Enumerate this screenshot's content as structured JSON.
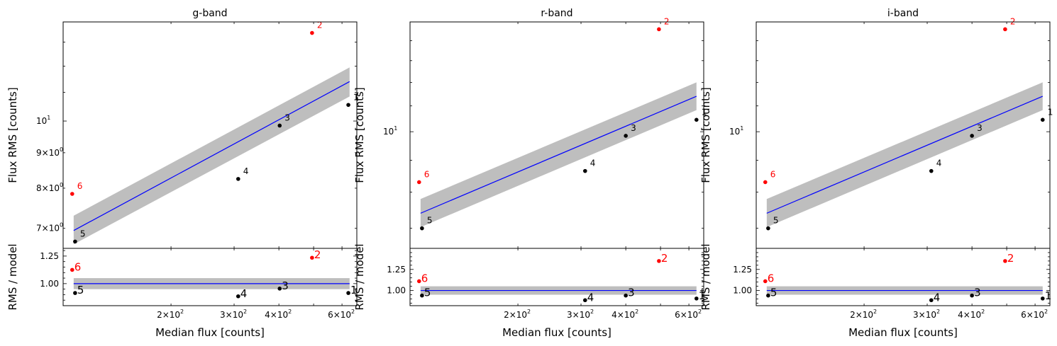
{
  "chart_data": [
    {
      "type": "scatter",
      "title": "g-band",
      "xlabel": "Median flux [counts]",
      "ylabel_top": "Flux RMS [counts]",
      "ylabel_bottom": "RMS / model",
      "x_scale": "log",
      "y_scale_top": "log",
      "xlim": [
        100,
        660
      ],
      "x_tick_labels": [
        {
          "value": 200,
          "label": "2×10",
          "exp": "2"
        },
        {
          "value": 300,
          "label": "3×10",
          "exp": "2"
        },
        {
          "value": 400,
          "label": "4×10",
          "exp": "2"
        },
        {
          "value": 600,
          "label": "6×10",
          "exp": "2"
        }
      ],
      "ylim_top": [
        6.55,
        13.9
      ],
      "y_tick_labels_top": [
        {
          "value": 7,
          "label": "7×10",
          "exp": "0"
        },
        {
          "value": 8,
          "label": "8×10",
          "exp": "0"
        },
        {
          "value": 9,
          "label": "9×10",
          "exp": "0"
        },
        {
          "value": 10,
          "label": "10",
          "exp": "1"
        }
      ],
      "ylim_bottom": [
        0.8,
        1.32
      ],
      "y_ticks_bottom": [
        1.0,
        1.25
      ],
      "y_tick_labels_bottom": [
        "1.00",
        "1.25"
      ],
      "points": [
        {
          "label": "1",
          "x": 625,
          "y": 10.55,
          "ratio": 0.915,
          "outlier": false
        },
        {
          "label": "2",
          "x": 495,
          "y": 13.4,
          "ratio": 1.235,
          "outlier": true
        },
        {
          "label": "3",
          "x": 402,
          "y": 9.85,
          "ratio": 0.955,
          "outlier": false
        },
        {
          "label": "4",
          "x": 308,
          "y": 8.25,
          "ratio": 0.885,
          "outlier": false
        },
        {
          "label": "5",
          "x": 108,
          "y": 6.7,
          "ratio": 0.915,
          "outlier": false
        },
        {
          "label": "6",
          "x": 106,
          "y": 7.85,
          "ratio": 1.125,
          "outlier": true
        }
      ],
      "fit": {
        "x": [
          107,
          630
        ],
        "y": [
          6.95,
          11.4
        ],
        "band_low": [
          6.64,
          10.85
        ],
        "band_high": [
          7.3,
          11.95
        ]
      },
      "ratio_band": [
        0.95,
        1.05
      ]
    },
    {
      "type": "scatter",
      "title": "r-band",
      "xlabel": "Median flux [counts]",
      "ylabel_top": "Flux RMS [counts]",
      "ylabel_bottom": "RMS / model",
      "x_scale": "log",
      "y_scale_top": "log",
      "xlim": [
        100,
        660
      ],
      "x_tick_labels": [
        {
          "value": 200,
          "label": "2×10",
          "exp": "2"
        },
        {
          "value": 300,
          "label": "3×10",
          "exp": "2"
        },
        {
          "value": 400,
          "label": "4×10",
          "exp": "2"
        },
        {
          "value": 600,
          "label": "6×10",
          "exp": "2"
        }
      ],
      "ylim_top": [
        6.5,
        15.0
      ],
      "y_tick_labels_top": [
        {
          "value": 10,
          "label": "10",
          "exp": "1"
        }
      ],
      "ylim_bottom": [
        0.82,
        1.5
      ],
      "y_ticks_bottom": [
        1.0,
        1.25
      ],
      "y_tick_labels_bottom": [
        "1.00",
        "1.25"
      ],
      "points": [
        {
          "label": "1",
          "x": 630,
          "y": 10.45,
          "ratio": 0.905,
          "outlier": false
        },
        {
          "label": "2",
          "x": 495,
          "y": 14.6,
          "ratio": 1.35,
          "outlier": true
        },
        {
          "label": "3",
          "x": 400,
          "y": 9.85,
          "ratio": 0.94,
          "outlier": false
        },
        {
          "label": "4",
          "x": 308,
          "y": 8.65,
          "ratio": 0.885,
          "outlier": false
        },
        {
          "label": "5",
          "x": 108,
          "y": 7.0,
          "ratio": 0.94,
          "outlier": false
        },
        {
          "label": "6",
          "x": 106,
          "y": 8.3,
          "ratio": 1.11,
          "outlier": true
        }
      ],
      "fit": {
        "x": [
          107,
          630
        ],
        "y": [
          7.4,
          11.4
        ],
        "band_low": [
          7.03,
          10.83
        ],
        "band_high": [
          7.8,
          12.0
        ]
      },
      "ratio_band": [
        0.95,
        1.05
      ]
    },
    {
      "type": "scatter",
      "title": "i-band",
      "xlabel": "Median flux [counts]",
      "ylabel_top": "Flux RMS [counts]",
      "ylabel_bottom": "RMS / model",
      "x_scale": "log",
      "y_scale_top": "log",
      "xlim": [
        100,
        660
      ],
      "x_tick_labels": [
        {
          "value": 200,
          "label": "2×10",
          "exp": "2"
        },
        {
          "value": 300,
          "label": "3×10",
          "exp": "2"
        },
        {
          "value": 400,
          "label": "4×10",
          "exp": "2"
        },
        {
          "value": 600,
          "label": "6×10",
          "exp": "2"
        }
      ],
      "ylim_top": [
        6.5,
        15.0
      ],
      "y_tick_labels_top": [
        {
          "value": 10,
          "label": "10",
          "exp": "1"
        }
      ],
      "ylim_bottom": [
        0.82,
        1.5
      ],
      "y_ticks_bottom": [
        1.0,
        1.25
      ],
      "y_tick_labels_bottom": [
        "1.00",
        "1.25"
      ],
      "points": [
        {
          "label": "1",
          "x": 630,
          "y": 10.45,
          "ratio": 0.905,
          "outlier": false
        },
        {
          "label": "2",
          "x": 495,
          "y": 14.6,
          "ratio": 1.35,
          "outlier": true
        },
        {
          "label": "3",
          "x": 400,
          "y": 9.85,
          "ratio": 0.94,
          "outlier": false
        },
        {
          "label": "4",
          "x": 308,
          "y": 8.65,
          "ratio": 0.885,
          "outlier": false
        },
        {
          "label": "5",
          "x": 108,
          "y": 7.0,
          "ratio": 0.94,
          "outlier": false
        },
        {
          "label": "6",
          "x": 106,
          "y": 8.3,
          "ratio": 1.11,
          "outlier": true
        }
      ],
      "fit": {
        "x": [
          107,
          630
        ],
        "y": [
          7.4,
          11.4
        ],
        "band_low": [
          7.03,
          10.83
        ],
        "band_high": [
          7.8,
          12.0
        ]
      },
      "ratio_band": [
        0.95,
        1.05
      ]
    }
  ],
  "colors": {
    "point": "#000000",
    "outlier": "#ff0000",
    "fit_line": "#0000ff",
    "band": "#bebebe"
  }
}
